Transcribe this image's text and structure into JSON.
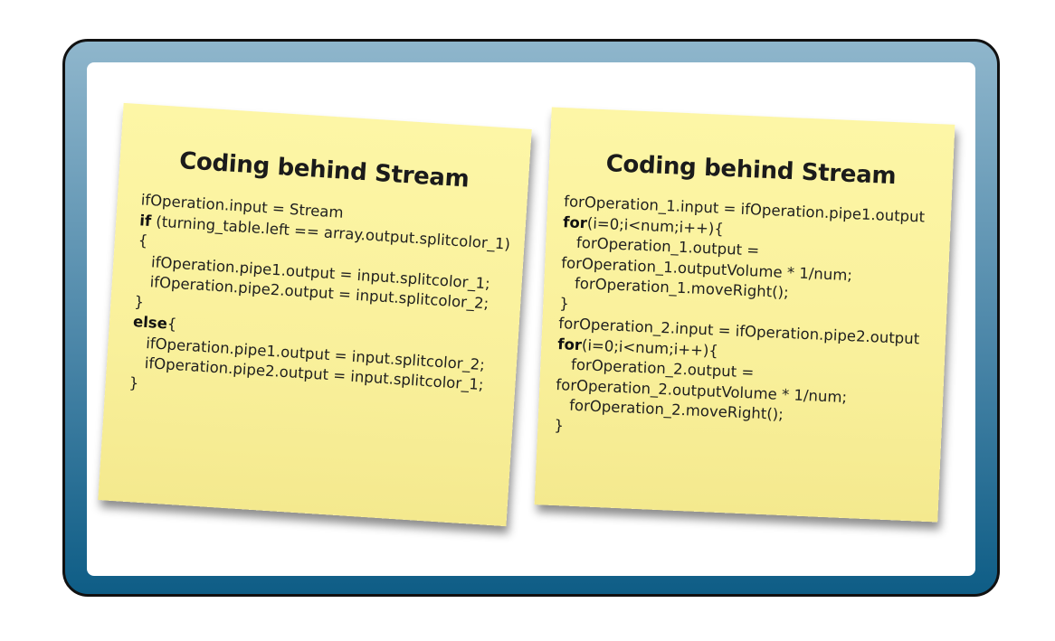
{
  "notes": [
    {
      "title": "Coding behind Stream",
      "lines": [
        {
          "indent": "",
          "keyword": "",
          "text": "ifOperation.input = Stream"
        },
        {
          "indent": "",
          "keyword": "if",
          "text": " (turning_table.left == array.output.splitcolor_1)"
        },
        {
          "indent": "",
          "keyword": "",
          "text": "{"
        },
        {
          "indent": "   ",
          "keyword": "",
          "text": "ifOperation.pipe1.output = input.splitcolor_1;"
        },
        {
          "indent": "   ",
          "keyword": "",
          "text": "ifOperation.pipe2.output = input.splitcolor_2;"
        },
        {
          "indent": "",
          "keyword": "",
          "text": "}"
        },
        {
          "indent": "",
          "keyword": "else",
          "text": "{"
        },
        {
          "indent": "   ",
          "keyword": "",
          "text": "ifOperation.pipe1.output = input.splitcolor_2;"
        },
        {
          "indent": "   ",
          "keyword": "",
          "text": "ifOperation.pipe2.output = input.splitcolor_1;"
        },
        {
          "indent": "",
          "keyword": "",
          "text": "}"
        }
      ]
    },
    {
      "title": "Coding behind Stream",
      "lines": [
        {
          "indent": "",
          "keyword": "",
          "text": "forOperation_1.input = ifOperation.pipe1.output"
        },
        {
          "indent": "",
          "keyword": "for",
          "text": "(i=0;i<num;i++){"
        },
        {
          "indent": "   ",
          "keyword": "",
          "text": "forOperation_1.output ="
        },
        {
          "indent": "",
          "keyword": "",
          "text": "forOperation_1.outputVolume * 1/num;"
        },
        {
          "indent": "   ",
          "keyword": "",
          "text": "forOperation_1.moveRight();"
        },
        {
          "indent": "",
          "keyword": "",
          "text": "}"
        },
        {
          "indent": "",
          "keyword": "",
          "text": "forOperation_2.input = ifOperation.pipe2.output"
        },
        {
          "indent": "",
          "keyword": "for",
          "text": "(i=0;i<num;i++){"
        },
        {
          "indent": "   ",
          "keyword": "",
          "text": "forOperation_2.output ="
        },
        {
          "indent": "",
          "keyword": "",
          "text": "forOperation_2.outputVolume * 1/num;"
        },
        {
          "indent": "   ",
          "keyword": "",
          "text": "forOperation_2.moveRight();"
        },
        {
          "indent": "",
          "keyword": "",
          "text": "}"
        }
      ]
    }
  ],
  "colors": {
    "frame_top": "#8fb6cc",
    "frame_bottom": "#0e5d86",
    "note_yellow": "#f9f09b"
  }
}
